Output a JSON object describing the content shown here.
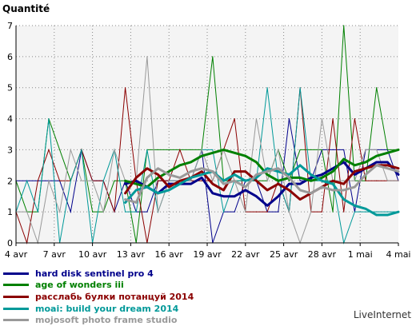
{
  "chart_data": {
    "type": "line",
    "ylabel": "Quantité",
    "ylim": [
      0,
      7
    ],
    "yticks": [
      "0",
      "1",
      "2",
      "3",
      "4",
      "5",
      "6",
      "7"
    ],
    "x_tick_labels": [
      "4 avr",
      "7 avr",
      "10 avr",
      "13 avr",
      "16 avr",
      "19 avr",
      "22 avr",
      "25 avr",
      "28 avr",
      "1 mai",
      "4 mai"
    ],
    "grid": true,
    "legend_position": "bottom",
    "series": [
      {
        "name": "hard disk sentinel pro 4",
        "color": "#00008b",
        "values": [
          2,
          2,
          2,
          2,
          2,
          1,
          3,
          2,
          2,
          1,
          2,
          1,
          1,
          2,
          2,
          2,
          2,
          3,
          0,
          1,
          1,
          2,
          2,
          1,
          1,
          4,
          2,
          2,
          3,
          3,
          3,
          1,
          3,
          3,
          3,
          2
        ],
        "moving_average": [
          null,
          null,
          null,
          null,
          null,
          null,
          null,
          null,
          null,
          null,
          1.9,
          2.0,
          1.8,
          1.6,
          1.9,
          1.9,
          1.9,
          2.1,
          1.6,
          1.5,
          1.5,
          1.7,
          1.5,
          1.2,
          1.5,
          1.9,
          1.9,
          2.1,
          2.2,
          2.4,
          2.6,
          2.2,
          2.4,
          2.6,
          2.6,
          2.2
        ]
      },
      {
        "name": "age of wonders iii",
        "color": "#008000",
        "values": [
          2,
          1,
          1,
          4,
          3,
          2,
          3,
          1,
          1,
          2,
          2,
          0,
          3,
          3,
          3,
          3,
          3,
          3,
          6,
          2,
          2,
          2,
          2,
          2,
          3,
          2,
          3,
          3,
          3,
          1,
          7,
          2,
          2,
          5,
          3,
          3
        ],
        "moving_average": [
          null,
          null,
          null,
          null,
          null,
          null,
          null,
          null,
          null,
          null,
          2.0,
          1.9,
          1.8,
          2.1,
          2.3,
          2.5,
          2.6,
          2.8,
          2.9,
          3.0,
          2.9,
          2.8,
          2.6,
          2.2,
          2.0,
          2.1,
          2.1,
          2.0,
          2.1,
          2.3,
          2.7,
          2.5,
          2.6,
          2.8,
          2.9,
          3.0
        ]
      },
      {
        "name": "расслабь булки потанцуй 2014",
        "color": "#8b0000",
        "values": [
          1,
          0,
          2,
          3,
          2,
          2,
          3,
          2,
          2,
          1,
          5,
          2,
          0,
          2,
          2,
          3,
          2,
          2,
          2,
          3,
          4,
          1,
          1,
          1,
          2,
          1,
          5,
          1,
          1,
          4,
          1,
          4,
          2,
          2,
          2,
          2
        ],
        "moving_average": [
          null,
          null,
          null,
          null,
          null,
          null,
          null,
          null,
          null,
          null,
          1.6,
          2.1,
          2.4,
          2.2,
          1.8,
          2.0,
          2.1,
          2.3,
          1.9,
          1.7,
          2.3,
          2.3,
          2.0,
          1.7,
          1.9,
          1.7,
          1.4,
          1.6,
          1.8,
          2.0,
          1.9,
          2.3,
          2.4,
          2.5,
          2.5,
          2.4
        ]
      },
      {
        "name": "moai: build your dream 2014",
        "color": "#009999",
        "values": [
          1,
          2,
          1,
          4,
          0,
          2,
          3,
          0,
          2,
          3,
          1,
          1,
          3,
          1,
          2,
          2,
          2,
          3,
          3,
          1,
          2,
          2,
          2,
          5,
          2,
          1,
          5,
          2,
          2,
          2,
          0,
          1,
          1,
          1,
          1,
          1
        ],
        "moving_average": [
          null,
          null,
          null,
          null,
          null,
          null,
          null,
          null,
          null,
          null,
          1.3,
          1.7,
          1.8,
          1.6,
          1.7,
          1.9,
          2.1,
          2.2,
          2.3,
          2.0,
          2.2,
          2.0,
          2.1,
          2.4,
          2.3,
          2.2,
          2.5,
          2.2,
          2.0,
          1.9,
          1.4,
          1.2,
          1.1,
          0.9,
          0.9,
          1.0
        ]
      },
      {
        "name": "mojosoft photo frame studio",
        "color": "#999999",
        "values": [
          1,
          1,
          0,
          2,
          1,
          3,
          2,
          2,
          1,
          3,
          2,
          2,
          6,
          1,
          2,
          2,
          2,
          3,
          2,
          3,
          2,
          1,
          4,
          2,
          3,
          1,
          0,
          1,
          4,
          2,
          2,
          2,
          3,
          3,
          2,
          2
        ],
        "moving_average": [
          null,
          null,
          null,
          null,
          null,
          null,
          null,
          null,
          null,
          null,
          1.4,
          1.3,
          2.1,
          2.4,
          2.2,
          2.1,
          2.3,
          2.4,
          2.3,
          1.9,
          2.0,
          1.8,
          2.2,
          2.3,
          2.4,
          2.1,
          1.7,
          1.6,
          1.8,
          1.7,
          1.7,
          1.8,
          2.2,
          2.5,
          2.4,
          2.3
        ]
      }
    ]
  },
  "footer": {
    "brand": "LiveInternet"
  }
}
